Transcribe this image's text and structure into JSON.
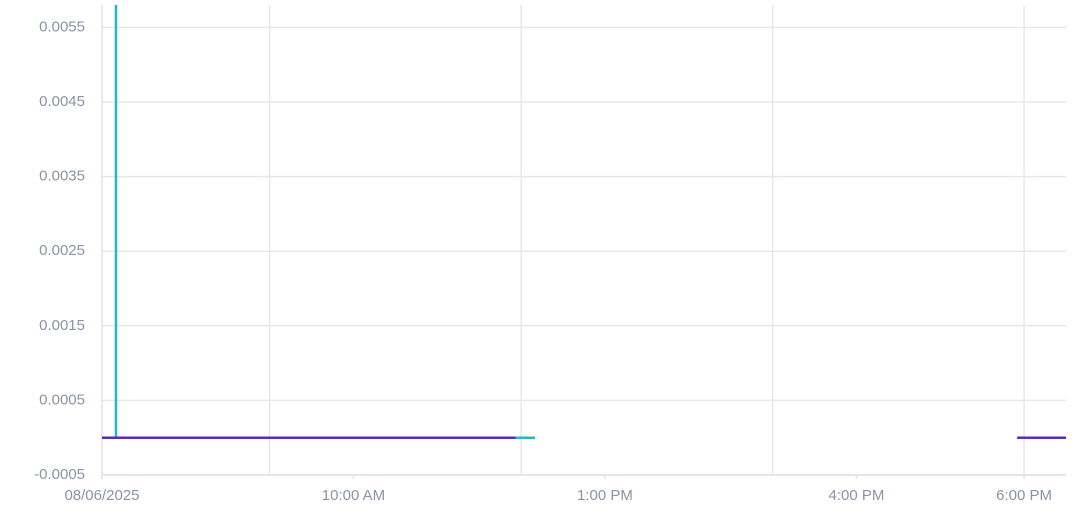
{
  "chart_data": {
    "type": "line",
    "ylim": [
      -0.0005,
      0.0058
    ],
    "yticks": [
      -0.0005,
      0.0005,
      0.0015,
      0.0025,
      0.0035,
      0.0045,
      0.0055
    ],
    "xlim": [
      "2025-08-06T07:00",
      "2025-08-06T18:30"
    ],
    "xticks": [
      {
        "value": "2025-08-06T07:00",
        "label": "08/06/2025"
      },
      {
        "value": "2025-08-06T10:00",
        "label": "10:00 AM"
      },
      {
        "value": "2025-08-06T13:00",
        "label": "1:00 PM"
      },
      {
        "value": "2025-08-06T16:00",
        "label": "4:00 PM"
      },
      {
        "value": "2025-08-06T18:00",
        "label": "6:00 PM"
      }
    ],
    "xgrid": [
      "2025-08-06T09:00",
      "2025-08-06T12:00",
      "2025-08-06T15:00",
      "2025-08-06T18:00"
    ],
    "grid": true,
    "series": [
      {
        "color": "#22b8c8",
        "x": [
          "2025-08-06T07:10",
          "2025-08-06T07:10",
          "2025-08-06T12:10"
        ],
        "values": [
          0.006,
          0,
          0
        ]
      },
      {
        "color": "#5a2bc2",
        "x": [
          "2025-08-06T07:00",
          "2025-08-06T11:56",
          "2025-08-06T11:57",
          "2025-08-06T17:55",
          "2025-08-06T18:30"
        ],
        "values": [
          0,
          0,
          null,
          0,
          0
        ]
      }
    ]
  }
}
